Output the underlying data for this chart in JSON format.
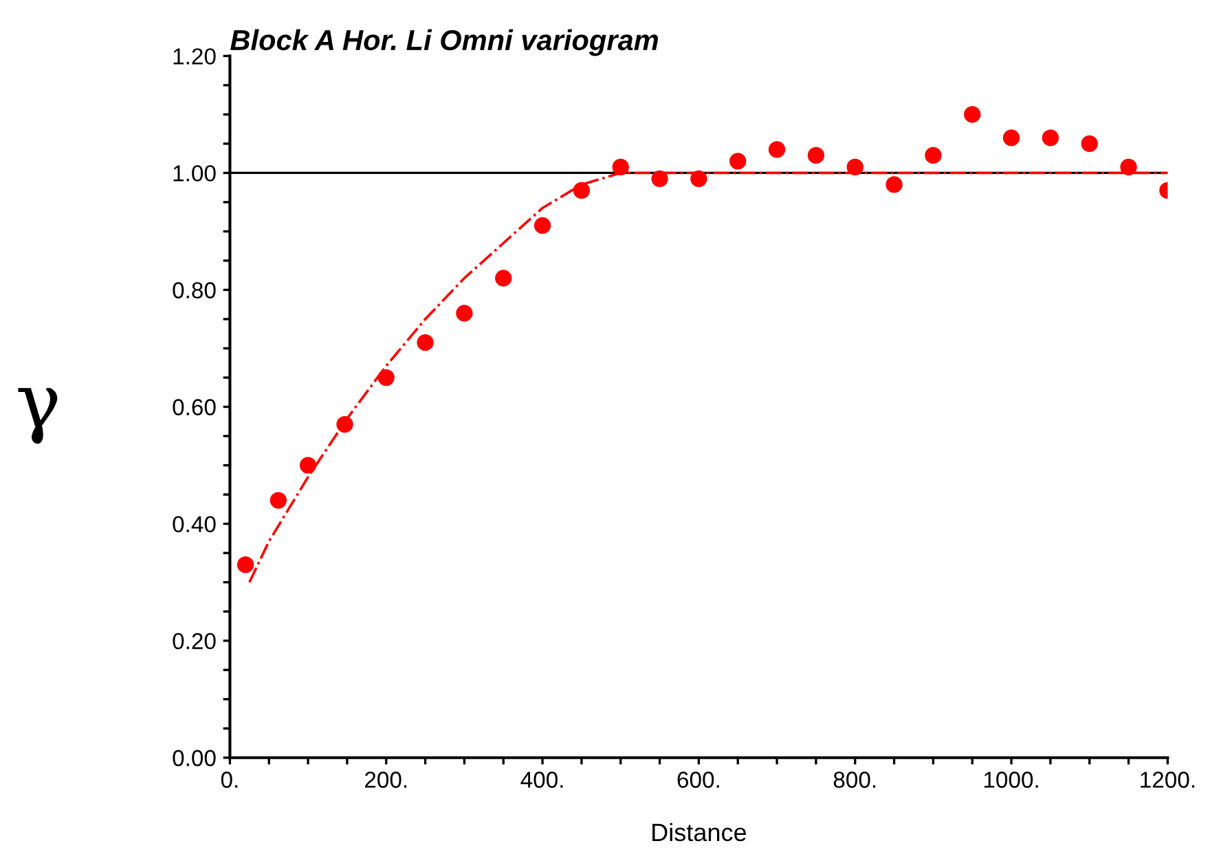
{
  "chart_data": {
    "type": "scatter",
    "title": "Block A Hor. Li Omni variogram",
    "xlabel": "Distance",
    "ylabel": "γ",
    "series": [
      {
        "color": "#ff0000",
        "marker": "circle",
        "x": [
          20,
          62,
          100,
          147,
          200,
          250,
          300,
          350,
          400,
          450,
          500,
          550,
          600,
          650,
          700,
          750,
          800,
          850,
          900,
          950,
          1000,
          1050,
          1100,
          1150,
          1200
        ],
        "values": [
          0.33,
          0.44,
          0.5,
          0.57,
          0.65,
          0.71,
          0.76,
          0.82,
          0.91,
          0.97,
          1.01,
          0.99,
          0.99,
          1.02,
          1.04,
          1.03,
          1.01,
          0.98,
          1.03,
          1.1,
          1.06,
          1.06,
          1.05,
          1.01,
          0.97
        ]
      },
      {
        "type": "line",
        "color": "#ff0000",
        "line_style": "dashdot",
        "marker": "none",
        "x": [
          25,
          50,
          100,
          150,
          200,
          250,
          300,
          350,
          400,
          450,
          500,
          550,
          1200
        ],
        "values": [
          0.3,
          0.37,
          0.48,
          0.58,
          0.67,
          0.75,
          0.82,
          0.88,
          0.94,
          0.98,
          1.0,
          1.0,
          1.0
        ]
      }
    ],
    "ref_lines": [
      {
        "axis": "y",
        "value": 1.0,
        "color": "#000000"
      }
    ],
    "xlim": [
      0,
      1200
    ],
    "ylim": [
      0,
      1.2
    ],
    "xticks": [
      {
        "value": 0,
        "label": "0."
      },
      {
        "value": 50,
        "label": null
      },
      {
        "value": 100,
        "label": null
      },
      {
        "value": 150,
        "label": null
      },
      {
        "value": 200,
        "label": "200."
      },
      {
        "value": 250,
        "label": null
      },
      {
        "value": 300,
        "label": null
      },
      {
        "value": 350,
        "label": null
      },
      {
        "value": 400,
        "label": "400."
      },
      {
        "value": 450,
        "label": null
      },
      {
        "value": 500,
        "label": null
      },
      {
        "value": 550,
        "label": null
      },
      {
        "value": 600,
        "label": "600."
      },
      {
        "value": 650,
        "label": null
      },
      {
        "value": 700,
        "label": null
      },
      {
        "value": 750,
        "label": null
      },
      {
        "value": 800,
        "label": "800."
      },
      {
        "value": 850,
        "label": null
      },
      {
        "value": 900,
        "label": null
      },
      {
        "value": 950,
        "label": null
      },
      {
        "value": 1000,
        "label": "1000."
      },
      {
        "value": 1050,
        "label": null
      },
      {
        "value": 1100,
        "label": null
      },
      {
        "value": 1150,
        "label": null
      },
      {
        "value": 1200,
        "label": "1200."
      }
    ],
    "yticks": [
      {
        "value": 0,
        "label": "0.00"
      },
      {
        "value": 0.05,
        "label": null
      },
      {
        "value": 0.1,
        "label": null
      },
      {
        "value": 0.15,
        "label": null
      },
      {
        "value": 0.2,
        "label": "0.20"
      },
      {
        "value": 0.25,
        "label": null
      },
      {
        "value": 0.3,
        "label": null
      },
      {
        "value": 0.35,
        "label": null
      },
      {
        "value": 0.4,
        "label": "0.40"
      },
      {
        "value": 0.45,
        "label": null
      },
      {
        "value": 0.5,
        "label": null
      },
      {
        "value": 0.55,
        "label": null
      },
      {
        "value": 0.6,
        "label": "0.60"
      },
      {
        "value": 0.65,
        "label": null
      },
      {
        "value": 0.7,
        "label": null
      },
      {
        "value": 0.75,
        "label": null
      },
      {
        "value": 0.8,
        "label": "0.80"
      },
      {
        "value": 0.85,
        "label": null
      },
      {
        "value": 0.9,
        "label": null
      },
      {
        "value": 0.95,
        "label": null
      },
      {
        "value": 1.0,
        "label": "1.00"
      },
      {
        "value": 1.05,
        "label": null
      },
      {
        "value": 1.1,
        "label": null
      },
      {
        "value": 1.15,
        "label": null
      },
      {
        "value": 1.2,
        "label": "1.20"
      }
    ],
    "grid": false,
    "legend": false
  }
}
